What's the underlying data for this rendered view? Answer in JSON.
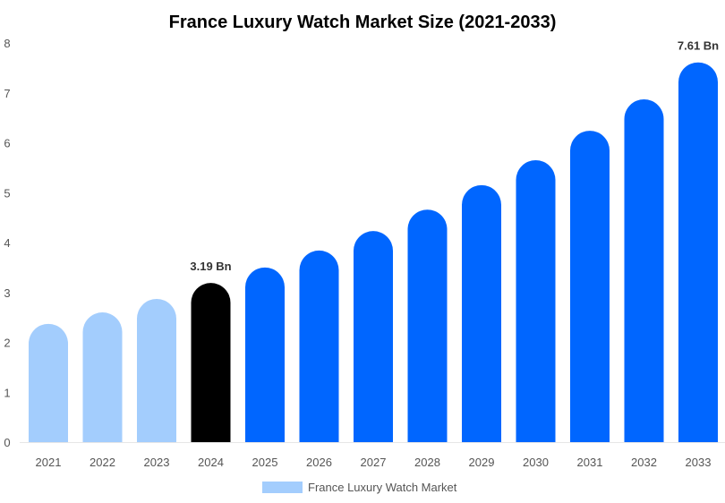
{
  "chart_data": {
    "type": "bar",
    "title": "France Luxury Watch Market Size (2021-2033)",
    "xlabel": "",
    "ylabel": "",
    "ylim": [
      0,
      8
    ],
    "yticks": [
      "0",
      "1",
      "2",
      "3",
      "4",
      "5",
      "6",
      "7",
      "8"
    ],
    "grid": false,
    "legend_position": "bottom",
    "categories": [
      "2021",
      "2022",
      "2023",
      "2024",
      "2025",
      "2026",
      "2027",
      "2028",
      "2029",
      "2030",
      "2031",
      "2032",
      "2033"
    ],
    "series": [
      {
        "name": "France Luxury Watch Market",
        "values": [
          2.37,
          2.6,
          2.87,
          3.19,
          3.5,
          3.84,
          4.23,
          4.66,
          5.15,
          5.65,
          6.24,
          6.87,
          7.61
        ]
      }
    ],
    "bar_colors": [
      "#a3cdfd",
      "#a3cdfd",
      "#a3cdfd",
      "#000000",
      "#0066ff",
      "#0066ff",
      "#0066ff",
      "#0066ff",
      "#0066ff",
      "#0066ff",
      "#0066ff",
      "#0066ff",
      "#0066ff"
    ],
    "legend_color": "#a3cdfd",
    "data_labels": [
      {
        "category": "2024",
        "text": "3.19 Bn"
      },
      {
        "category": "2033",
        "text": "7.61 Bn"
      }
    ]
  }
}
